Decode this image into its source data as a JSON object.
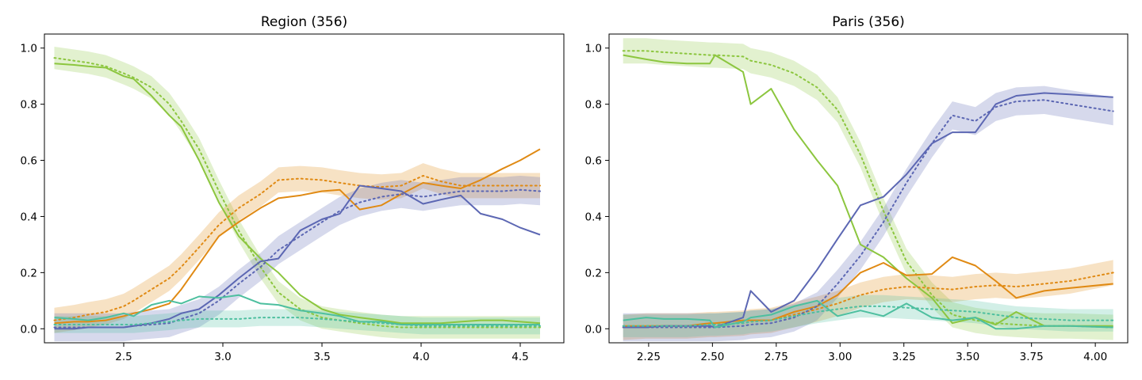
{
  "colors": {
    "green": "#8cc63f",
    "orange": "#e08a14",
    "blue": "#5c67b3",
    "teal": "#4dbf9f"
  },
  "chart_data": [
    {
      "type": "line",
      "title": "Region (356)",
      "xlim": [
        2.1,
        4.72
      ],
      "ylim": [
        -0.05,
        1.05
      ],
      "xticks": [
        2.5,
        3.0,
        3.5,
        4.0,
        4.5
      ],
      "xtick_labels": [
        "2.5",
        "3.0",
        "3.5",
        "4.0",
        "4.5"
      ],
      "yticks": [
        0.0,
        0.2,
        0.4,
        0.6,
        0.8,
        1.0
      ],
      "ytick_labels": [
        "0.0",
        "0.2",
        "0.4",
        "0.6",
        "0.8",
        "1.0"
      ],
      "x": [
        2.15,
        2.25,
        2.32,
        2.41,
        2.5,
        2.55,
        2.64,
        2.73,
        2.79,
        2.88,
        2.98,
        3.08,
        3.19,
        3.28,
        3.39,
        3.5,
        3.59,
        3.69,
        3.8,
        3.9,
        4.01,
        4.1,
        4.2,
        4.3,
        4.41,
        4.5,
        4.6
      ],
      "series": [
        {
          "name": "green",
          "color_key": "green",
          "values": [
            0.945,
            0.94,
            0.935,
            0.93,
            0.9,
            0.89,
            0.83,
            0.76,
            0.72,
            0.6,
            0.45,
            0.33,
            0.25,
            0.2,
            0.12,
            0.07,
            0.05,
            0.04,
            0.03,
            0.02,
            0.02,
            0.02,
            0.025,
            0.03,
            0.03,
            0.025,
            0.02
          ]
        },
        {
          "name": "green mean",
          "color_key": "green",
          "dotted": true,
          "values": [
            0.965,
            0.955,
            0.948,
            0.935,
            0.91,
            0.895,
            0.86,
            0.8,
            0.74,
            0.64,
            0.49,
            0.35,
            0.22,
            0.13,
            0.07,
            0.04,
            0.03,
            0.02,
            0.01,
            0.005,
            0.005,
            0.005,
            0.005,
            0.005,
            0.005,
            0.005,
            0.005
          ],
          "band_width": 0.04
        },
        {
          "name": "orange",
          "color_key": "orange",
          "values": [
            0.02,
            0.025,
            0.025,
            0.03,
            0.045,
            0.055,
            0.07,
            0.09,
            0.14,
            0.23,
            0.33,
            0.38,
            0.43,
            0.465,
            0.475,
            0.49,
            0.495,
            0.425,
            0.44,
            0.48,
            0.52,
            0.51,
            0.5,
            0.53,
            0.57,
            0.6,
            0.64
          ]
        },
        {
          "name": "orange mean",
          "color_key": "orange",
          "dotted": true,
          "values": [
            0.03,
            0.04,
            0.05,
            0.06,
            0.08,
            0.1,
            0.14,
            0.18,
            0.22,
            0.29,
            0.37,
            0.43,
            0.48,
            0.53,
            0.535,
            0.53,
            0.52,
            0.51,
            0.505,
            0.51,
            0.545,
            0.525,
            0.51,
            0.51,
            0.51,
            0.51,
            0.51
          ],
          "band_width": 0.045
        },
        {
          "name": "blue",
          "color_key": "blue",
          "values": [
            0.0,
            0.0,
            0.005,
            0.005,
            0.005,
            0.01,
            0.02,
            0.035,
            0.055,
            0.07,
            0.12,
            0.18,
            0.24,
            0.25,
            0.35,
            0.39,
            0.41,
            0.51,
            0.5,
            0.49,
            0.445,
            0.46,
            0.475,
            0.41,
            0.39,
            0.36,
            0.335
          ]
        },
        {
          "name": "blue mean",
          "color_key": "blue",
          "dotted": true,
          "values": [
            0.005,
            0.005,
            0.005,
            0.005,
            0.005,
            0.01,
            0.015,
            0.02,
            0.035,
            0.055,
            0.1,
            0.16,
            0.22,
            0.28,
            0.33,
            0.38,
            0.42,
            0.45,
            0.47,
            0.48,
            0.47,
            0.48,
            0.49,
            0.49,
            0.49,
            0.495,
            0.49
          ],
          "band_width": 0.05
        },
        {
          "name": "teal",
          "color_key": "teal",
          "values": [
            0.04,
            0.035,
            0.03,
            0.04,
            0.055,
            0.045,
            0.085,
            0.1,
            0.09,
            0.115,
            0.11,
            0.12,
            0.09,
            0.085,
            0.065,
            0.055,
            0.045,
            0.025,
            0.025,
            0.015,
            0.015,
            0.015,
            0.015,
            0.015,
            0.015,
            0.015,
            0.015
          ]
        },
        {
          "name": "teal mean",
          "color_key": "teal",
          "dotted": true,
          "values": [
            0.015,
            0.015,
            0.015,
            0.015,
            0.015,
            0.015,
            0.02,
            0.025,
            0.03,
            0.035,
            0.035,
            0.035,
            0.04,
            0.04,
            0.04,
            0.035,
            0.03,
            0.025,
            0.02,
            0.015,
            0.01,
            0.01,
            0.01,
            0.01,
            0.01,
            0.01,
            0.01
          ],
          "band_width": 0.03
        }
      ]
    },
    {
      "type": "line",
      "title": "Paris (356)",
      "xlim": [
        2.095,
        4.127
      ],
      "ylim": [
        -0.05,
        1.05
      ],
      "xticks": [
        2.25,
        2.5,
        2.75,
        3.0,
        3.25,
        3.5,
        3.75,
        4.0
      ],
      "xtick_labels": [
        "2.25",
        "2.50",
        "2.75",
        "3.00",
        "3.25",
        "3.50",
        "3.75",
        "4.00"
      ],
      "yticks": [
        0.0,
        0.2,
        0.4,
        0.6,
        0.8,
        1.0
      ],
      "ytick_labels": [
        "0.0",
        "0.2",
        "0.4",
        "0.6",
        "0.8",
        "1.0"
      ],
      "x": [
        2.15,
        2.24,
        2.31,
        2.4,
        2.49,
        2.51,
        2.62,
        2.65,
        2.73,
        2.82,
        2.91,
        2.99,
        3.08,
        3.17,
        3.26,
        3.36,
        3.44,
        3.53,
        3.61,
        3.69,
        3.8,
        3.9,
        4.07
      ],
      "series": [
        {
          "name": "green",
          "color_key": "green",
          "values": [
            0.975,
            0.96,
            0.95,
            0.945,
            0.945,
            0.975,
            0.915,
            0.8,
            0.855,
            0.71,
            0.6,
            0.51,
            0.3,
            0.255,
            0.18,
            0.11,
            0.02,
            0.04,
            0.015,
            0.06,
            0.01,
            0.01,
            0.01
          ]
        },
        {
          "name": "green mean",
          "color_key": "green",
          "dotted": true,
          "values": [
            0.99,
            0.99,
            0.985,
            0.98,
            0.975,
            0.975,
            0.97,
            0.955,
            0.94,
            0.91,
            0.86,
            0.78,
            0.62,
            0.42,
            0.24,
            0.12,
            0.05,
            0.03,
            0.02,
            0.015,
            0.01,
            0.01,
            0.005
          ],
          "band_width": 0.045
        },
        {
          "name": "orange",
          "color_key": "orange",
          "values": [
            0.01,
            0.01,
            0.01,
            0.01,
            0.02,
            0.02,
            0.03,
            0.03,
            0.03,
            0.06,
            0.08,
            0.12,
            0.2,
            0.235,
            0.19,
            0.195,
            0.255,
            0.225,
            0.17,
            0.11,
            0.135,
            0.145,
            0.16
          ]
        },
        {
          "name": "orange mean",
          "color_key": "orange",
          "dotted": true,
          "values": [
            0.005,
            0.01,
            0.01,
            0.01,
            0.015,
            0.015,
            0.02,
            0.025,
            0.03,
            0.05,
            0.07,
            0.09,
            0.12,
            0.14,
            0.15,
            0.145,
            0.14,
            0.15,
            0.155,
            0.15,
            0.16,
            0.17,
            0.2
          ],
          "band_width": 0.045
        },
        {
          "name": "blue",
          "color_key": "blue",
          "values": [
            0.005,
            0.005,
            0.01,
            0.01,
            0.01,
            0.005,
            0.04,
            0.135,
            0.06,
            0.1,
            0.21,
            0.32,
            0.44,
            0.47,
            0.55,
            0.66,
            0.7,
            0.7,
            0.8,
            0.83,
            0.84,
            0.835,
            0.825
          ]
        },
        {
          "name": "blue mean",
          "color_key": "blue",
          "dotted": true,
          "values": [
            0.005,
            0.005,
            0.005,
            0.005,
            0.005,
            0.005,
            0.01,
            0.015,
            0.02,
            0.04,
            0.08,
            0.16,
            0.26,
            0.38,
            0.52,
            0.66,
            0.76,
            0.74,
            0.79,
            0.81,
            0.815,
            0.8,
            0.775
          ],
          "band_width": 0.05
        },
        {
          "name": "teal",
          "color_key": "teal",
          "values": [
            0.03,
            0.04,
            0.035,
            0.035,
            0.03,
            0.005,
            0.025,
            0.04,
            0.05,
            0.08,
            0.1,
            0.045,
            0.065,
            0.045,
            0.09,
            0.04,
            0.03,
            0.04,
            0.0,
            0.0,
            0.01,
            0.01,
            0.005
          ]
        },
        {
          "name": "teal mean",
          "color_key": "teal",
          "dotted": true,
          "values": [
            0.01,
            0.01,
            0.01,
            0.01,
            0.015,
            0.015,
            0.02,
            0.025,
            0.03,
            0.045,
            0.06,
            0.07,
            0.08,
            0.08,
            0.075,
            0.07,
            0.065,
            0.06,
            0.05,
            0.04,
            0.035,
            0.03,
            0.03
          ],
          "band_width": 0.04
        }
      ]
    }
  ]
}
